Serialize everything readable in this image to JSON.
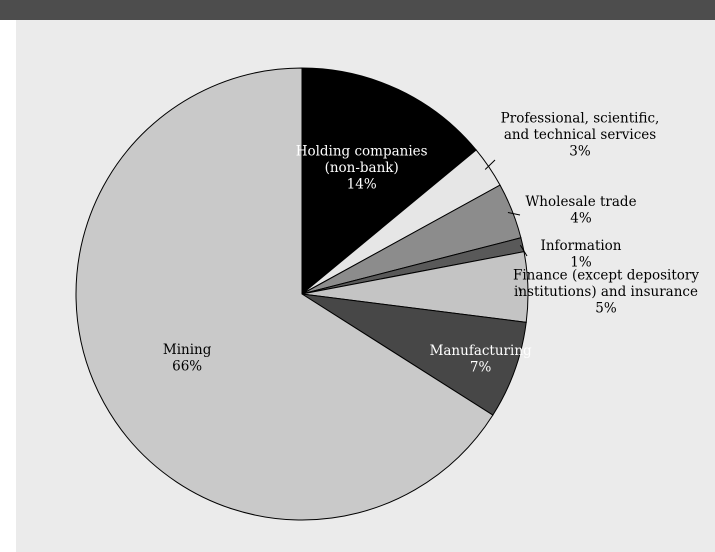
{
  "colors": {
    "top_bar": "#4d4d4d",
    "panel": "#ebebeb",
    "slice_stroke": "#000000",
    "leader": "#000000"
  },
  "chart_data": {
    "type": "pie",
    "title": "",
    "start_angle_deg": 0,
    "direction": "clockwise",
    "slices": [
      {
        "label": "Holding companies (non-bank)",
        "label_lines": [
          "Holding companies",
          "(non-bank)"
        ],
        "percent_text": "14%",
        "value": 14,
        "color": "#000000",
        "text_color": "#ffffff"
      },
      {
        "label": "Professional, scientific, and technical services",
        "label_lines": [
          "Professional, scientific,",
          "and technical services"
        ],
        "percent_text": "3%",
        "value": 3,
        "color": "#e6e6e6",
        "text_color": "#000000"
      },
      {
        "label": "Wholesale trade",
        "label_lines": [
          "Wholesale trade"
        ],
        "percent_text": "4%",
        "value": 4,
        "color": "#8c8c8c",
        "text_color": "#000000"
      },
      {
        "label": "Information",
        "label_lines": [
          "Information"
        ],
        "percent_text": "1%",
        "value": 1,
        "color": "#595959",
        "text_color": "#000000"
      },
      {
        "label": "Finance (except depository institutions) and insurance",
        "label_lines": [
          "Finance (except depository",
          "institutions) and insurance"
        ],
        "percent_text": "5%",
        "value": 5,
        "color": "#c4c4c4",
        "text_color": "#000000"
      },
      {
        "label": "Manufacturing",
        "label_lines": [
          "Manufacturing"
        ],
        "percent_text": "7%",
        "value": 7,
        "color": "#474747",
        "text_color": "#ffffff"
      },
      {
        "label": "Mining",
        "label_lines": [
          "Mining"
        ],
        "percent_text": "66%",
        "value": 66,
        "color": "#c9c9c9",
        "text_color": "#000000"
      }
    ]
  }
}
